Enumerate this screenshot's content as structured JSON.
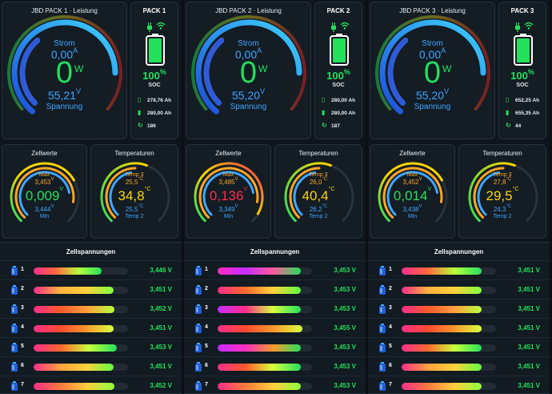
{
  "packs": [
    {
      "power_title": "JBD PACK 1 · Leistung",
      "pack_label": "PACK 1",
      "strom_label": "Strom",
      "strom_value": "0,00",
      "strom_unit": "A",
      "power_value": "0",
      "power_unit": "W",
      "volt_value": "55,21",
      "volt_unit": "V",
      "volt_label": "Spannung",
      "soc_value": "100",
      "soc_unit": "%",
      "soc_label": "SOC",
      "soc_fraction": 1.0,
      "remaining_ah": "278,76 Ah",
      "full_ah": "280,00 Ah",
      "cycles": "186",
      "zellwerte_title": "Zellwerte",
      "max_label": "Max",
      "max_value": "3,453",
      "max_unit": "V",
      "delta_value": "0,009",
      "delta_unit": "V",
      "delta_color": "#23e05a",
      "min_value": "3,444",
      "min_unit": "V",
      "min_label": "Min",
      "temp_title": "Temperaturen",
      "temp3_label": "Temp 3",
      "temp3_value": "25,5",
      "temp3_unit": "°C",
      "temp_main": "34,8",
      "temp_main_unit": "°C",
      "temp2_value": "25,5",
      "temp2_unit": "°C",
      "temp2_label": "Temp 2",
      "cells_title": "Zellspannungen",
      "cells": [
        {
          "num": "1",
          "volt": "3,446 V",
          "level": 0.72
        },
        {
          "num": "2",
          "volt": "3,451 V",
          "level": 0.85
        },
        {
          "num": "3",
          "volt": "3,452 V",
          "level": 0.86
        },
        {
          "num": "4",
          "volt": "3,451 V",
          "level": 0.85
        },
        {
          "num": "5",
          "volt": "3,453 V",
          "level": 0.88
        },
        {
          "num": "6",
          "volt": "3,451 V",
          "level": 0.85
        },
        {
          "num": "7",
          "volt": "3,452 V",
          "level": 0.86
        }
      ]
    },
    {
      "power_title": "JBD PACK 2 · Leistung",
      "pack_label": "PACK 2",
      "strom_label": "Strom",
      "strom_value": "0,00",
      "strom_unit": "A",
      "power_value": "0",
      "power_unit": "W",
      "volt_value": "55,20",
      "volt_unit": "V",
      "volt_label": "Spannung",
      "soc_value": "100",
      "soc_unit": "%",
      "soc_label": "SOC",
      "soc_fraction": 1.0,
      "remaining_ah": "280,00 Ah",
      "full_ah": "280,00 Ah",
      "cycles": "187",
      "zellwerte_title": "Zellwerte",
      "max_label": "Max",
      "max_value": "3,485",
      "max_unit": "V",
      "delta_value": "0,136",
      "delta_unit": "V",
      "delta_color": "#ff2f4a",
      "min_value": "3,349",
      "min_unit": "V",
      "min_label": "Min",
      "temp_title": "Temperaturen",
      "temp3_label": "Temp 3",
      "temp3_value": "26,0",
      "temp3_unit": "°C",
      "temp_main": "40,4",
      "temp_main_unit": "°C",
      "temp2_value": "26,2",
      "temp2_unit": "°C",
      "temp2_label": "Temp 2",
      "cells_title": "Zellspannungen",
      "cells": [
        {
          "num": "1",
          "volt": "3,453 V",
          "level": 0.88
        },
        {
          "num": "2",
          "volt": "3,453 V",
          "level": 0.88
        },
        {
          "num": "3",
          "volt": "3,453 V",
          "level": 0.88
        },
        {
          "num": "4",
          "volt": "3,455 V",
          "level": 0.9
        },
        {
          "num": "5",
          "volt": "3,453 V",
          "level": 0.88
        },
        {
          "num": "6",
          "volt": "3,453 V",
          "level": 0.88
        },
        {
          "num": "7",
          "volt": "3,453 V",
          "level": 0.88
        }
      ]
    },
    {
      "power_title": "JBD PACK 3 · Leistung",
      "pack_label": "PACK 3",
      "strom_label": "Strom",
      "strom_value": "0,00",
      "strom_unit": "A",
      "power_value": "0",
      "power_unit": "W",
      "volt_value": "55,20",
      "volt_unit": "V",
      "volt_label": "Spannung",
      "soc_value": "100",
      "soc_unit": "%",
      "soc_label": "SOC",
      "soc_fraction": 1.0,
      "remaining_ah": "652,25 Ah",
      "full_ah": "655,35 Ah",
      "cycles": "44",
      "zellwerte_title": "Zellwerte",
      "max_label": "Max",
      "max_value": "3,452",
      "max_unit": "V",
      "delta_value": "0,014",
      "delta_unit": "V",
      "delta_color": "#23e05a",
      "min_value": "3,438",
      "min_unit": "V",
      "min_label": "Min",
      "temp_title": "Temperaturen",
      "temp3_label": "Temp 3",
      "temp3_value": "27,8",
      "temp3_unit": "°C",
      "temp_main": "29,5",
      "temp_main_unit": "°C",
      "temp2_value": "24,3",
      "temp2_unit": "°C",
      "temp2_label": "Temp 2",
      "cells_title": "Zellspannungen",
      "cells": [
        {
          "num": "1",
          "volt": "3,451 V",
          "level": 0.85
        },
        {
          "num": "2",
          "volt": "3,451 V",
          "level": 0.85
        },
        {
          "num": "3",
          "volt": "3,451 V",
          "level": 0.85
        },
        {
          "num": "4",
          "volt": "3,451 V",
          "level": 0.85
        },
        {
          "num": "5",
          "volt": "3,451 V",
          "level": 0.85
        },
        {
          "num": "6",
          "volt": "3,451 V",
          "level": 0.85
        },
        {
          "num": "7",
          "volt": "3,451 V",
          "level": 0.85
        }
      ]
    }
  ],
  "colors": {
    "green": "#23e05a",
    "blue": "#3ea6ff",
    "orange": "#ffa726",
    "red": "#ff2f4a",
    "yellow": "#ffd400"
  },
  "icons": [
    "plug-icon",
    "wifi-icon",
    "battery-icon",
    "battery-charge-icon",
    "battery-full-icon",
    "cycle-icon",
    "cell-battery-icon"
  ]
}
